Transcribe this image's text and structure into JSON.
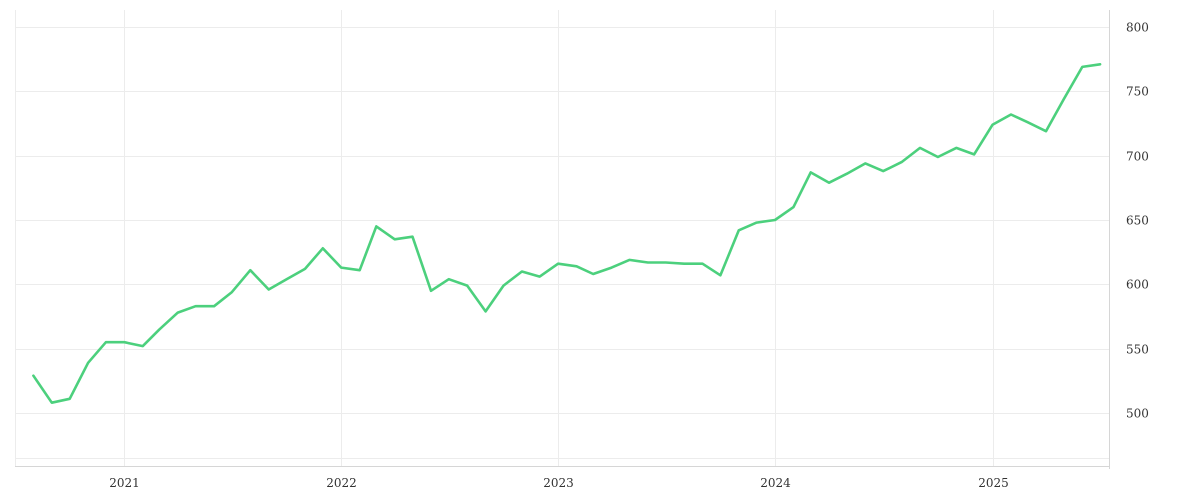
{
  "chart_data": {
    "type": "line",
    "title": "",
    "xlabel": "",
    "ylabel": "",
    "x_range": [
      "2020-07-01",
      "2025-07-16"
    ],
    "ylim": [
      455,
      805
    ],
    "x_ticks": [
      {
        "date": "2021-01-01",
        "label": "2021"
      },
      {
        "date": "2022-01-01",
        "label": "2022"
      },
      {
        "date": "2023-01-01",
        "label": "2023"
      },
      {
        "date": "2024-01-01",
        "label": "2024"
      },
      {
        "date": "2025-01-01",
        "label": "2025"
      }
    ],
    "y_ticks": [
      500,
      550,
      600,
      650,
      700,
      750,
      800
    ],
    "y_axis_position": "right",
    "grid": true,
    "legend": "none",
    "series": [
      {
        "color": "#4cd07d",
        "points": [
          [
            "2020-08-01",
            529
          ],
          [
            "2020-09-01",
            508
          ],
          [
            "2020-10-01",
            511
          ],
          [
            "2020-11-01",
            539
          ],
          [
            "2020-12-01",
            555
          ],
          [
            "2021-01-01",
            555
          ],
          [
            "2021-02-01",
            552
          ],
          [
            "2021-03-01",
            565
          ],
          [
            "2021-04-01",
            578
          ],
          [
            "2021-05-01",
            583
          ],
          [
            "2021-06-01",
            583
          ],
          [
            "2021-07-01",
            594
          ],
          [
            "2021-08-01",
            611
          ],
          [
            "2021-09-01",
            596
          ],
          [
            "2021-10-01",
            604
          ],
          [
            "2021-11-01",
            612
          ],
          [
            "2021-12-01",
            628
          ],
          [
            "2022-01-01",
            613
          ],
          [
            "2022-02-01",
            611
          ],
          [
            "2022-03-01",
            645
          ],
          [
            "2022-04-01",
            635
          ],
          [
            "2022-05-01",
            637
          ],
          [
            "2022-06-01",
            595
          ],
          [
            "2022-07-01",
            604
          ],
          [
            "2022-08-01",
            599
          ],
          [
            "2022-09-01",
            579
          ],
          [
            "2022-10-01",
            599
          ],
          [
            "2022-11-01",
            610
          ],
          [
            "2022-12-01",
            606
          ],
          [
            "2023-01-01",
            616
          ],
          [
            "2023-02-01",
            614
          ],
          [
            "2023-03-01",
            608
          ],
          [
            "2023-04-01",
            613
          ],
          [
            "2023-05-01",
            619
          ],
          [
            "2023-06-01",
            617
          ],
          [
            "2023-07-01",
            617
          ],
          [
            "2023-08-01",
            616
          ],
          [
            "2023-09-01",
            616
          ],
          [
            "2023-10-01",
            607
          ],
          [
            "2023-11-01",
            642
          ],
          [
            "2023-12-01",
            648
          ],
          [
            "2024-01-01",
            650
          ],
          [
            "2024-02-01",
            660
          ],
          [
            "2024-03-01",
            687
          ],
          [
            "2024-04-01",
            679
          ],
          [
            "2024-05-01",
            686
          ],
          [
            "2024-06-01",
            694
          ],
          [
            "2024-07-01",
            688
          ],
          [
            "2024-08-01",
            695
          ],
          [
            "2024-09-01",
            706
          ],
          [
            "2024-10-01",
            699
          ],
          [
            "2024-11-01",
            706
          ],
          [
            "2024-12-01",
            701
          ],
          [
            "2025-01-01",
            724
          ],
          [
            "2025-02-01",
            732
          ],
          [
            "2025-03-01",
            726
          ],
          [
            "2025-04-01",
            719
          ],
          [
            "2025-05-01",
            744
          ],
          [
            "2025-06-01",
            769
          ],
          [
            "2025-07-01",
            771
          ]
        ]
      }
    ]
  }
}
